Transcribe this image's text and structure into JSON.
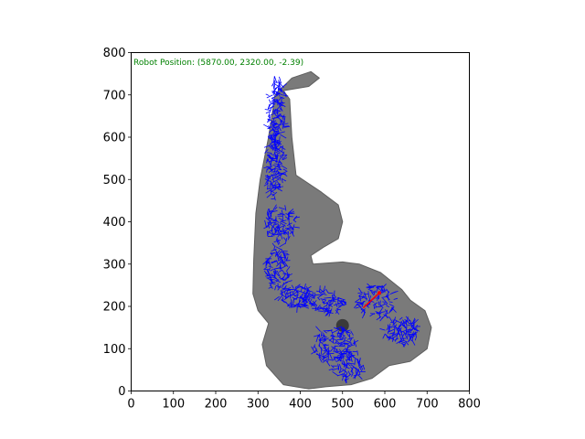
{
  "chart_data": {
    "type": "scatter",
    "title": "",
    "xlabel": "",
    "ylabel": "",
    "xlim": [
      0,
      800
    ],
    "ylim": [
      0,
      800
    ],
    "x_ticks": [
      0,
      100,
      200,
      300,
      400,
      500,
      600,
      700,
      800
    ],
    "y_ticks": [
      0,
      100,
      200,
      300,
      400,
      500,
      600,
      700,
      800
    ],
    "x_tick_labels": [
      "0",
      "100",
      "200",
      "300",
      "400",
      "500",
      "600",
      "700",
      "800"
    ],
    "y_tick_labels": [
      "0",
      "100",
      "200",
      "300",
      "400",
      "500",
      "600",
      "700",
      "800"
    ],
    "grid": false,
    "annotation": {
      "text": "Robot Position: (5870.00, 2320.00, -2.39)",
      "color": "#008000",
      "placement": "top-left inside axes"
    },
    "robot_pose": {
      "x": 5870.0,
      "y": 2320.0,
      "theta": -2.39
    },
    "robot_marker": {
      "x": 587,
      "y": 232,
      "heading": -2.39,
      "color": "#ff0000"
    },
    "map_outline": [
      [
        425,
        755
      ],
      [
        380,
        740
      ],
      [
        340,
        700
      ],
      [
        325,
        600
      ],
      [
        305,
        500
      ],
      [
        295,
        420
      ],
      [
        290,
        310
      ],
      [
        288,
        230
      ],
      [
        300,
        190
      ],
      [
        325,
        160
      ],
      [
        310,
        110
      ],
      [
        320,
        60
      ],
      [
        360,
        15
      ],
      [
        420,
        5
      ],
      [
        460,
        10
      ],
      [
        520,
        15
      ],
      [
        570,
        30
      ],
      [
        610,
        60
      ],
      [
        660,
        70
      ],
      [
        700,
        100
      ],
      [
        710,
        150
      ],
      [
        695,
        190
      ],
      [
        660,
        215
      ],
      [
        640,
        240
      ],
      [
        590,
        280
      ],
      [
        540,
        300
      ],
      [
        500,
        305
      ],
      [
        430,
        300
      ],
      [
        425,
        320
      ],
      [
        455,
        340
      ],
      [
        490,
        360
      ],
      [
        500,
        400
      ],
      [
        490,
        440
      ],
      [
        450,
        470
      ],
      [
        390,
        510
      ],
      [
        380,
        600
      ],
      [
        375,
        690
      ],
      [
        360,
        710
      ],
      [
        420,
        720
      ],
      [
        445,
        740
      ]
    ],
    "map_color": "#7a7a7a",
    "particle_color": "#0000ff",
    "particle_regions": [
      {
        "cx": 345,
        "cy": 660,
        "rx": 22,
        "ry": 80,
        "count": 140
      },
      {
        "cx": 340,
        "cy": 530,
        "rx": 20,
        "ry": 80,
        "count": 140
      },
      {
        "cx": 350,
        "cy": 395,
        "rx": 40,
        "ry": 40,
        "count": 110
      },
      {
        "cx": 345,
        "cy": 290,
        "rx": 28,
        "ry": 55,
        "count": 110
      },
      {
        "cx": 390,
        "cy": 225,
        "rx": 40,
        "ry": 25,
        "count": 80
      },
      {
        "cx": 450,
        "cy": 210,
        "rx": 55,
        "ry": 25,
        "count": 100
      },
      {
        "cx": 580,
        "cy": 210,
        "rx": 45,
        "ry": 40,
        "count": 100
      },
      {
        "cx": 640,
        "cy": 140,
        "rx": 40,
        "ry": 30,
        "count": 110
      },
      {
        "cx": 480,
        "cy": 110,
        "rx": 55,
        "ry": 40,
        "count": 130
      },
      {
        "cx": 510,
        "cy": 60,
        "rx": 40,
        "ry": 35,
        "count": 90
      }
    ]
  }
}
